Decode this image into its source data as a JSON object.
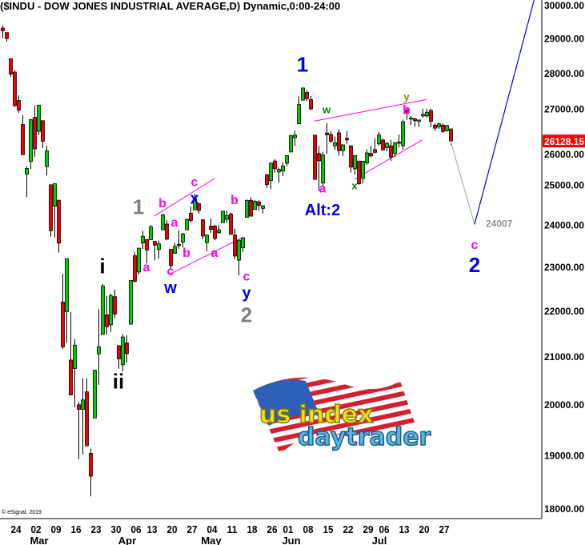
{
  "title": "($INDU - DOW JONES INDUSTRIAL AVERAGE,D) Dynamic,0:00-24:00",
  "copyright": "© eSignal, 2019",
  "logo_text": [
    "us index",
    "daytrader"
  ],
  "colors": {
    "up": "#00cc00",
    "down": "#ee0000",
    "wick": "#000000",
    "last_price_bg": "#ff0000",
    "trendline": "#ff00ff",
    "projection_down": "#b0b0b0",
    "projection_up": "#0000ee"
  },
  "chart_data": {
    "type": "candlestick",
    "y_scale": "log",
    "ylim": [
      18000,
      30000
    ],
    "y_ticks": [
      "30000.00",
      "29000.00",
      "28000.00",
      "27000.00",
      "26000.00",
      "25000.00",
      "24000.00",
      "23000.00",
      "22000.00",
      "21000.00",
      "20000.00",
      "19000.00",
      "18000.00"
    ],
    "last_price": "26128.15",
    "x_ticks": [
      {
        "date": "2020-02-24",
        "label": "24"
      },
      {
        "date": "2020-03-02",
        "label": "02"
      },
      {
        "date": "2020-03-09",
        "label": "09"
      },
      {
        "date": "2020-03-16",
        "label": "16"
      },
      {
        "date": "2020-03-23",
        "label": "23"
      },
      {
        "date": "2020-03-30",
        "label": "30"
      },
      {
        "date": "2020-04-06",
        "label": "06"
      },
      {
        "date": "2020-04-13",
        "label": "13"
      },
      {
        "date": "2020-04-20",
        "label": "20"
      },
      {
        "date": "2020-04-27",
        "label": "27"
      },
      {
        "date": "2020-05-04",
        "label": "04"
      },
      {
        "date": "2020-05-11",
        "label": "11"
      },
      {
        "date": "2020-05-18",
        "label": "18"
      },
      {
        "date": "2020-05-26",
        "label": "26"
      },
      {
        "date": "2020-06-01",
        "label": "01"
      },
      {
        "date": "2020-06-08",
        "label": "08"
      },
      {
        "date": "2020-06-15",
        "label": "15"
      },
      {
        "date": "2020-06-22",
        "label": "22"
      },
      {
        "date": "2020-06-29",
        "label": "29"
      },
      {
        "date": "2020-07-06",
        "label": "06"
      },
      {
        "date": "2020-07-13",
        "label": "13"
      },
      {
        "date": "2020-07-20",
        "label": "20"
      },
      {
        "date": "2020-07-27",
        "label": "27"
      }
    ],
    "month_labels": [
      {
        "date": "2020-03-02",
        "label": "Mar"
      },
      {
        "date": "2020-04-01",
        "label": "Apr"
      },
      {
        "date": "2020-05-01",
        "label": "May"
      },
      {
        "date": "2020-06-01",
        "label": "Jun"
      },
      {
        "date": "2020-07-01",
        "label": "Jul"
      }
    ],
    "columns": [
      "date",
      "open",
      "high",
      "low",
      "close"
    ],
    "candles": [
      [
        "2020-02-20",
        29300,
        29370,
        29000,
        29219
      ],
      [
        "2020-02-21",
        29167,
        29167,
        28893,
        28992
      ],
      [
        "2020-02-24",
        28402,
        28402,
        27882,
        27961
      ],
      [
        "2020-02-25",
        28020,
        28071,
        27043,
        27081
      ],
      [
        "2020-02-26",
        27224,
        27365,
        26881,
        26957
      ],
      [
        "2020-02-27",
        26568,
        26820,
        25762,
        25766
      ],
      [
        "2020-02-28",
        25258,
        25464,
        24681,
        25409
      ],
      [
        "2020-03-02",
        25590,
        26706,
        25391,
        26703
      ],
      [
        "2020-03-03",
        26763,
        27084,
        25706,
        25917
      ],
      [
        "2020-03-04",
        26383,
        27102,
        26286,
        27091
      ],
      [
        "2020-03-05",
        26671,
        26671,
        25943,
        26121
      ],
      [
        "2020-03-06",
        25457,
        25994,
        25227,
        25865
      ],
      [
        "2020-03-09",
        24992,
        24992,
        23707,
        23851
      ],
      [
        "2020-03-10",
        24453,
        25020,
        23690,
        25018
      ],
      [
        "2020-03-11",
        24604,
        24604,
        23328,
        23553
      ],
      [
        "2020-03-12",
        22184,
        22837,
        21154,
        21200
      ],
      [
        "2020-03-13",
        21973,
        23186,
        21286,
        23186
      ],
      [
        "2020-03-16",
        20917,
        21960,
        20189,
        20189
      ],
      [
        "2020-03-17",
        20739,
        21371,
        19938,
        21237
      ],
      [
        "2020-03-18",
        19989,
        20049,
        18917,
        19899
      ],
      [
        "2020-03-19",
        19898,
        20534,
        19009,
        20087
      ],
      [
        "2020-03-20",
        20253,
        20531,
        19174,
        19174
      ],
      [
        "2020-03-23",
        19028,
        19121,
        18214,
        18592
      ],
      [
        "2020-03-24",
        19723,
        20705,
        19723,
        20705
      ],
      [
        "2020-03-25",
        21051,
        22020,
        20398,
        21200
      ],
      [
        "2020-03-26",
        21468,
        22595,
        21469,
        22552
      ],
      [
        "2020-03-27",
        21899,
        22327,
        21469,
        21637
      ],
      [
        "2020-03-30",
        21678,
        22378,
        21522,
        22327
      ],
      [
        "2020-03-31",
        22306,
        22471,
        21827,
        21917
      ],
      [
        "2020-04-01",
        21227,
        21227,
        20735,
        20943
      ],
      [
        "2020-04-02",
        20819,
        21477,
        20676,
        21413
      ],
      [
        "2020-04-03",
        21285,
        21447,
        20863,
        21053
      ],
      [
        "2020-04-06",
        21693,
        22680,
        21693,
        22680
      ],
      [
        "2020-04-07",
        23253,
        23339,
        22635,
        22654
      ],
      [
        "2020-04-08",
        22873,
        23434,
        22813,
        23434
      ],
      [
        "2020-04-09",
        23556,
        23849,
        23414,
        23719
      ],
      [
        "2020-04-13",
        23641,
        23641,
        23070,
        23390
      ],
      [
        "2020-04-14",
        23636,
        23990,
        23636,
        23950
      ],
      [
        "2020-04-15",
        23596,
        23596,
        23146,
        23505
      ],
      [
        "2020-04-16",
        23400,
        23620,
        23185,
        23538
      ],
      [
        "2020-04-17",
        23877,
        24264,
        23877,
        24242
      ],
      [
        "2020-04-20",
        24014,
        24114,
        23620,
        23650
      ],
      [
        "2020-04-21",
        23406,
        23406,
        22942,
        23019
      ],
      [
        "2020-04-22",
        23309,
        23558,
        23309,
        23475
      ],
      [
        "2020-04-23",
        23524,
        23866,
        23417,
        23515
      ],
      [
        "2020-04-24",
        23578,
        23800,
        23450,
        23775
      ],
      [
        "2020-04-27",
        23874,
        24134,
        23874,
        24134
      ],
      [
        "2020-04-28",
        24280,
        24440,
        24050,
        24101
      ],
      [
        "2020-04-29",
        24364,
        24764,
        24364,
        24634
      ],
      [
        "2020-04-30",
        24517,
        24517,
        24269,
        24346
      ],
      [
        "2020-05-01",
        24120,
        24120,
        23645,
        23724
      ],
      [
        "2020-05-04",
        23565,
        23750,
        23361,
        23750
      ],
      [
        "2020-05-05",
        23962,
        24150,
        23802,
        23883
      ],
      [
        "2020-05-06",
        23965,
        24000,
        23625,
        23664
      ],
      [
        "2020-05-07",
        23806,
        24000,
        23779,
        23875
      ],
      [
        "2020-05-08",
        24047,
        24332,
        24047,
        24331
      ],
      [
        "2020-05-11",
        24128,
        24345,
        24045,
        24222
      ],
      [
        "2020-05-12",
        24260,
        24300,
        23760,
        23765
      ],
      [
        "2020-05-13",
        23750,
        23900,
        23172,
        23248
      ],
      [
        "2020-05-14",
        23150,
        23631,
        22790,
        23625
      ],
      [
        "2020-05-15",
        23442,
        23691,
        23343,
        23685
      ],
      [
        "2020-05-18",
        24178,
        24628,
        24178,
        24597
      ],
      [
        "2020-05-19",
        24600,
        24676,
        24200,
        24207
      ],
      [
        "2020-05-20",
        24370,
        24610,
        24370,
        24576
      ],
      [
        "2020-05-21",
        24561,
        24600,
        24348,
        24474
      ],
      [
        "2020-05-22",
        24400,
        24480,
        24279,
        24465
      ],
      [
        "2020-05-26",
        25244,
        25270,
        24910,
        24995
      ],
      [
        "2020-05-27",
        25097,
        25558,
        24880,
        25548
      ],
      [
        "2020-05-28",
        25600,
        25650,
        25300,
        25401
      ],
      [
        "2020-05-29",
        25320,
        25430,
        25045,
        25383
      ],
      [
        "2020-06-01",
        25343,
        25568,
        25214,
        25475
      ],
      [
        "2020-06-02",
        25543,
        25751,
        25456,
        25742
      ],
      [
        "2020-06-03",
        25836,
        26283,
        25836,
        26270
      ],
      [
        "2020-06-04",
        26214,
        26400,
        26000,
        26282
      ],
      [
        "2020-06-05",
        26588,
        27338,
        26588,
        27111
      ],
      [
        "2020-06-08",
        27232,
        27580,
        27232,
        27572
      ],
      [
        "2020-06-09",
        27446,
        27500,
        27200,
        27272
      ],
      [
        "2020-06-10",
        27250,
        27350,
        26960,
        26990
      ],
      [
        "2020-06-11",
        26282,
        26282,
        25128,
        25128
      ],
      [
        "2020-06-12",
        25800,
        26000,
        24843,
        25606
      ],
      [
        "2020-06-15",
        25034,
        25842,
        24934,
        25763
      ],
      [
        "2020-06-16",
        26341,
        26611,
        25786,
        26290
      ],
      [
        "2020-06-17",
        26300,
        26384,
        26079,
        26120
      ],
      [
        "2020-06-18",
        26000,
        26250,
        25892,
        26080
      ],
      [
        "2020-06-19",
        26345,
        26436,
        25740,
        25871
      ],
      [
        "2020-06-22",
        25871,
        26040,
        25730,
        26025
      ],
      [
        "2020-06-23",
        26196,
        26400,
        26050,
        26156
      ],
      [
        "2020-06-24",
        26000,
        26000,
        25300,
        25445
      ],
      [
        "2020-06-25",
        25400,
        25747,
        25250,
        25746
      ],
      [
        "2020-06-26",
        25600,
        25600,
        24990,
        25016
      ],
      [
        "2020-06-29",
        25152,
        25600,
        25021,
        25596
      ],
      [
        "2020-06-30",
        25550,
        25905,
        25500,
        25813
      ],
      [
        "2020-07-01",
        25800,
        26000,
        25700,
        25735
      ],
      [
        "2020-07-02",
        25900,
        26200,
        25800,
        25827
      ],
      [
        "2020-07-06",
        26050,
        26365,
        26000,
        26287
      ],
      [
        "2020-07-07",
        26150,
        26200,
        25880,
        25890
      ],
      [
        "2020-07-08",
        25950,
        26100,
        25850,
        26067
      ],
      [
        "2020-07-09",
        26000,
        26150,
        25600,
        25706
      ],
      [
        "2020-07-10",
        25800,
        26100,
        25700,
        26075
      ],
      [
        "2020-07-13",
        26100,
        26300,
        25950,
        26086
      ],
      [
        "2020-07-14",
        26000,
        26700,
        25900,
        26643
      ],
      [
        "2020-07-15",
        26950,
        27050,
        26700,
        26870
      ],
      [
        "2020-07-16",
        26735,
        26800,
        26550,
        26745
      ],
      [
        "2020-07-17",
        26720,
        26750,
        26500,
        26672
      ],
      [
        "2020-07-20",
        26680,
        26700,
        26500,
        26690
      ],
      [
        "2020-07-21",
        26800,
        27000,
        26750,
        26840
      ],
      [
        "2020-07-22",
        26800,
        27000,
        26750,
        26900
      ],
      [
        "2020-07-23",
        26950,
        27000,
        26500,
        26652
      ],
      [
        "2020-07-24",
        26550,
        26600,
        26400,
        26470
      ],
      [
        "2020-07-27",
        26500,
        26620,
        26450,
        26585
      ],
      [
        "2020-07-28",
        26550,
        26600,
        26350,
        26379
      ],
      [
        "2020-07-29",
        26400,
        26560,
        26380,
        26540
      ],
      [
        "2020-07-30",
        26450,
        26450,
        26020,
        26128
      ]
    ],
    "trendlines": [
      {
        "from": [
          "2020-04-15",
          24210
        ],
        "to": [
          "2020-05-06",
          25150
        ]
      },
      {
        "from": [
          "2020-04-21",
          22830
        ],
        "to": [
          "2020-05-15",
          23690
        ]
      },
      {
        "from": [
          "2020-06-11",
          26660
        ],
        "to": [
          "2020-07-22",
          27250
        ]
      },
      {
        "from": [
          "2020-06-25",
          25130
        ],
        "to": [
          "2020-07-21",
          26160
        ]
      }
    ],
    "projection": {
      "target_label": "24007",
      "down": {
        "from": [
          "2020-07-30",
          26128
        ],
        "to": [
          "2020-08-07",
          24007
        ]
      },
      "up": {
        "from": [
          "2020-08-07",
          24007
        ],
        "to": [
          "2020-08-28",
          30200
        ]
      }
    },
    "wave_labels": [
      {
        "text": "1",
        "date": "2020-04-08",
        "price": 24440,
        "color": "#808080",
        "kind": "major"
      },
      {
        "text": "i",
        "date": "2020-03-26",
        "price": 23020,
        "color": "#000000",
        "kind": "major"
      },
      {
        "text": "ii",
        "date": "2020-04-01",
        "price": 20480,
        "color": "#000000",
        "kind": "major"
      },
      {
        "text": "a",
        "date": "2020-04-13",
        "price": 23000,
        "color": "#ff00ff",
        "kind": "minor"
      },
      {
        "text": "b",
        "date": "2020-04-17",
        "price": 24540,
        "color": "#ff00ff",
        "kind": "minor"
      },
      {
        "text": "a",
        "date": "2020-04-22",
        "price": 24070,
        "color": "#ff00ff",
        "kind": "minor"
      },
      {
        "text": "c",
        "date": "2020-04-29",
        "price": 25080,
        "color": "#ff00ff",
        "kind": "minor"
      },
      {
        "text": "x",
        "date": "2020-04-29",
        "price": 25420,
        "color": "#0000ee",
        "kind": "mid"
      },
      {
        "text": "b",
        "date": "2020-04-27",
        "price": 23340,
        "color": "#ff00ff",
        "kind": "minor"
      },
      {
        "text": "c",
        "date": "2020-04-21",
        "price": 22900,
        "color": "#ff00ff",
        "kind": "minor"
      },
      {
        "text": "w",
        "date": "2020-04-21",
        "price": 22680,
        "color": "#0000ee",
        "kind": "mid"
      },
      {
        "text": "a",
        "date": "2020-05-06",
        "price": 23340,
        "color": "#ff00ff",
        "kind": "minor"
      },
      {
        "text": "b",
        "date": "2020-05-13",
        "price": 24620,
        "color": "#ff00ff",
        "kind": "minor"
      },
      {
        "text": "c",
        "date": "2020-05-18",
        "price": 22780,
        "color": "#ff00ff",
        "kind": "minor"
      },
      {
        "text": "y",
        "date": "2020-05-18",
        "price": 22470,
        "color": "#0000ee",
        "kind": "mid"
      },
      {
        "text": "2",
        "date": "2020-05-18",
        "price": 22020,
        "color": "#808080",
        "kind": "major"
      },
      {
        "text": "1",
        "date": "2020-06-08",
        "price": 28250,
        "color": "#0000ee",
        "kind": "major"
      },
      {
        "text": "w",
        "date": "2020-06-16",
        "price": 26970,
        "color": "#008000",
        "kind": "small"
      },
      {
        "text": "a",
        "date": "2020-06-15",
        "price": 24910,
        "color": "#ff00ff",
        "kind": "minor"
      },
      {
        "text": "Alt:2",
        "date": "2020-06-15",
        "price": 24370,
        "color": "#0000ee",
        "kind": "mid"
      },
      {
        "text": "x",
        "date": "2020-06-25",
        "price": 24970,
        "color": "#008000",
        "kind": "small"
      },
      {
        "text": "y",
        "date": "2020-07-15",
        "price": 27330,
        "color": "#808000",
        "kind": "small"
      },
      {
        "text": "b",
        "date": "2020-07-15",
        "price": 27700,
        "color": "#ff00ff",
        "kind": "minor"
      },
      {
        "text": "c",
        "date": "2020-08-07",
        "price": 23530,
        "color": "#ff00ff",
        "kind": "minor"
      },
      {
        "text": "2",
        "date": "2020-08-07",
        "price": 23080,
        "color": "#0000ee",
        "kind": "major"
      }
    ]
  }
}
